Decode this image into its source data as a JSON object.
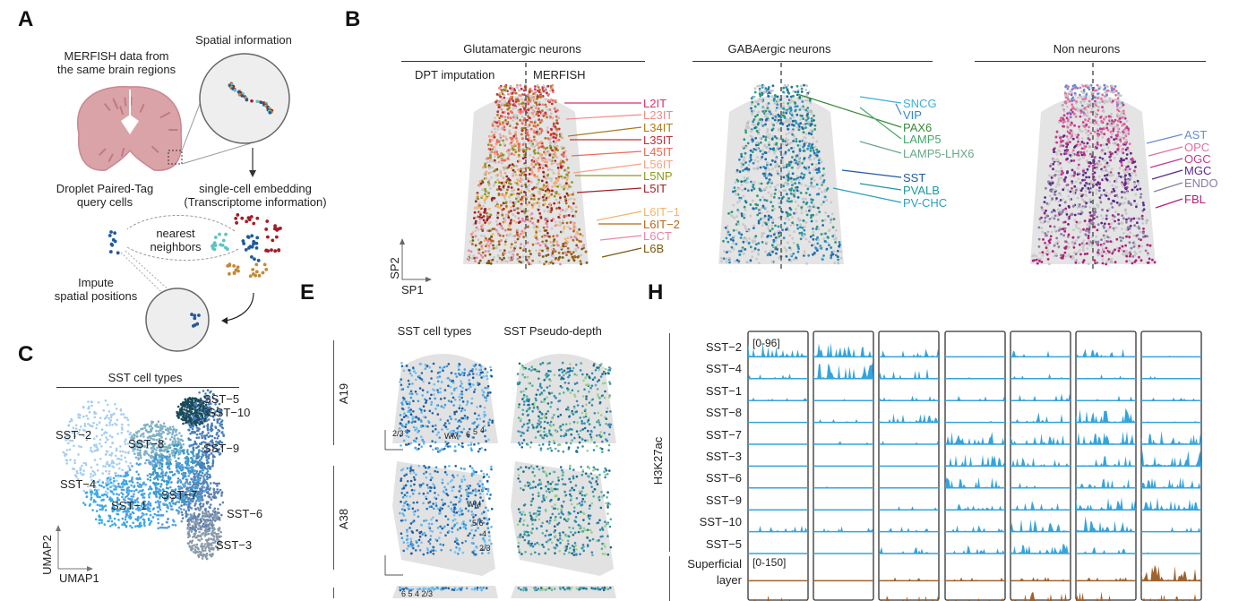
{
  "panels": {
    "a": "A",
    "b": "B",
    "c": "C",
    "e": "E",
    "h": "H"
  },
  "panel_a": {
    "spatial_info": "Spatial information",
    "merfish_line1": "MERFISH data from",
    "merfish_line2": "the same brain regions",
    "droplet_line1": "Droplet Paired-Tag",
    "droplet_line2": "query cells",
    "embedding_line1": "single-cell embedding",
    "embedding_line2": "(Transcriptome information)",
    "nn_line1": "nearest",
    "nn_line2": "neighbors",
    "impute_line1": "Impute",
    "impute_line2": "spatial positions",
    "colors": {
      "red": "#a51c24",
      "teal": "#5cc4c0",
      "blue": "#1f5a9e",
      "gold": "#c38a35",
      "brain": "#d9a3a8"
    }
  },
  "panel_b": {
    "groups": [
      {
        "title": "Glutamatergic neurons"
      },
      {
        "title": "GABAergic neurons"
      },
      {
        "title": "Non neurons"
      }
    ],
    "left_half_label": "DPT imputation",
    "right_half_label": "MERFISH",
    "axis_x": "SP1",
    "axis_y": "SP2",
    "glut_types": [
      {
        "name": "L2IT",
        "color": "#d6336c"
      },
      {
        "name": "L23IT",
        "color": "#ef8a8a"
      },
      {
        "name": "L34IT",
        "color": "#a87b1a"
      },
      {
        "name": "L35IT",
        "color": "#c0303a"
      },
      {
        "name": "L45IT",
        "color": "#ee6a55"
      },
      {
        "name": "L56IT",
        "color": "#f4a384"
      },
      {
        "name": "L5NP",
        "color": "#8c9a1e"
      },
      {
        "name": "L5IT",
        "color": "#a01f2a"
      },
      {
        "name": "L6IT−1",
        "color": "#f2b56b"
      },
      {
        "name": "L6IT−2",
        "color": "#b06a1e"
      },
      {
        "name": "L6CT",
        "color": "#e885a8"
      },
      {
        "name": "L6B",
        "color": "#7a5a10"
      }
    ],
    "gaba_types": [
      {
        "name": "SNCG",
        "color": "#3aaee0"
      },
      {
        "name": "VIP",
        "color": "#3a86c8"
      },
      {
        "name": "PAX6",
        "color": "#3a8a3a"
      },
      {
        "name": "LAMP5",
        "color": "#44a86a"
      },
      {
        "name": "LAMP5-LHX6",
        "color": "#6aa88a"
      },
      {
        "name": "SST",
        "color": "#1f5a9e"
      },
      {
        "name": "PVALB",
        "color": "#1c9a9a"
      },
      {
        "name": "PV-CHC",
        "color": "#2aa0c0"
      }
    ],
    "non_types": [
      {
        "name": "AST",
        "color": "#6a8ad6"
      },
      {
        "name": "OPC",
        "color": "#e070a0"
      },
      {
        "name": "OGC",
        "color": "#c03a90"
      },
      {
        "name": "MGC",
        "color": "#5a2a8a"
      },
      {
        "name": "ENDO",
        "color": "#8a7aa8"
      },
      {
        "name": "FBL",
        "color": "#b0207a"
      }
    ]
  },
  "panel_c": {
    "title": "SST cell types",
    "axis_x": "UMAP1",
    "axis_y": "UMAP2",
    "clusters": [
      "SST−5",
      "SST−10",
      "SST−2",
      "SST−8",
      "SST−9",
      "SST−4",
      "SST−7",
      "SST−1",
      "SST−6",
      "SST−3"
    ]
  },
  "panel_e": {
    "col1": "SST cell types",
    "col2": "SST Pseudo-depth",
    "rows": [
      "A19",
      "A38"
    ],
    "a19_layers": [
      "2/3",
      "WM",
      "6",
      "5",
      "4"
    ],
    "a38_layers": [
      "WM",
      "5/6",
      "4",
      "2/3"
    ],
    "row3_layers": "6 5 4 2/3"
  },
  "panel_h": {
    "mark": "H3K27ac",
    "sst_rows": [
      "SST−2",
      "SST−4",
      "SST−1",
      "SST−8",
      "SST−7",
      "SST−3",
      "SST−6",
      "SST−9",
      "SST−10",
      "SST−5"
    ],
    "sst_range": "[0-96]",
    "layer_label_line1": "Superficial",
    "layer_label_line2": "layer",
    "layer_range": "[0-150]",
    "columns": 7,
    "colors": {
      "sst": "#35a4dc",
      "layer": "#a0622d"
    }
  }
}
